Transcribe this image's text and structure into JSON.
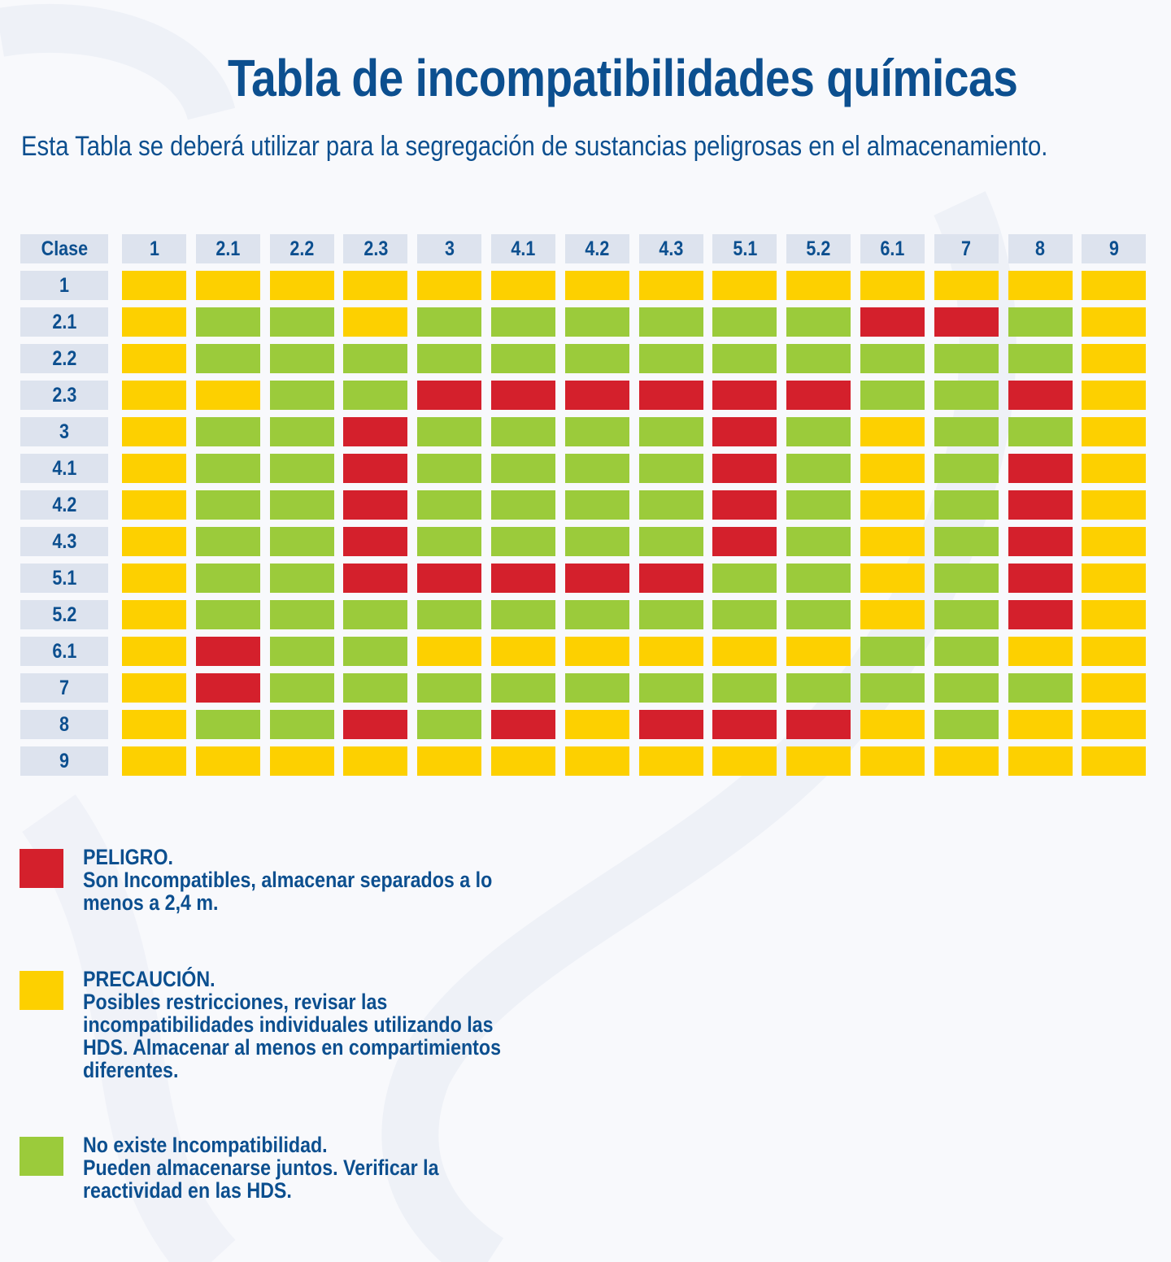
{
  "title": "Tabla de incompatibilidades químicas",
  "subtitle": "Esta Tabla se deberá utilizar para la segregación de sustancias peligrosas en el almacenamiento.",
  "colors": {
    "red": "#d4202c",
    "yellow": "#fdd000",
    "green": "#9bcb3b",
    "header_bg": "#dde3ee",
    "text": "#0c4f8f"
  },
  "table": {
    "corner": "Clase",
    "columns": [
      "1",
      "2.1",
      "2.2",
      "2.3",
      "3",
      "4.1",
      "4.2",
      "4.3",
      "5.1",
      "5.2",
      "6.1",
      "7",
      "8",
      "9"
    ],
    "rows": [
      {
        "label": "1",
        "cells": [
          "Y",
          "Y",
          "Y",
          "Y",
          "Y",
          "Y",
          "Y",
          "Y",
          "Y",
          "Y",
          "Y",
          "Y",
          "Y",
          "Y"
        ]
      },
      {
        "label": "2.1",
        "cells": [
          "Y",
          "G",
          "G",
          "Y",
          "G",
          "G",
          "G",
          "G",
          "G",
          "G",
          "R",
          "R",
          "G",
          "Y"
        ]
      },
      {
        "label": "2.2",
        "cells": [
          "Y",
          "G",
          "G",
          "G",
          "G",
          "G",
          "G",
          "G",
          "G",
          "G",
          "G",
          "G",
          "G",
          "Y"
        ]
      },
      {
        "label": "2.3",
        "cells": [
          "Y",
          "Y",
          "G",
          "G",
          "R",
          "R",
          "R",
          "R",
          "R",
          "R",
          "G",
          "G",
          "R",
          "Y"
        ]
      },
      {
        "label": "3",
        "cells": [
          "Y",
          "G",
          "G",
          "R",
          "G",
          "G",
          "G",
          "G",
          "R",
          "G",
          "Y",
          "G",
          "G",
          "Y"
        ]
      },
      {
        "label": "4.1",
        "cells": [
          "Y",
          "G",
          "G",
          "R",
          "G",
          "G",
          "G",
          "G",
          "R",
          "G",
          "Y",
          "G",
          "R",
          "Y"
        ]
      },
      {
        "label": "4.2",
        "cells": [
          "Y",
          "G",
          "G",
          "R",
          "G",
          "G",
          "G",
          "G",
          "R",
          "G",
          "Y",
          "G",
          "R",
          "Y"
        ]
      },
      {
        "label": "4.3",
        "cells": [
          "Y",
          "G",
          "G",
          "R",
          "G",
          "G",
          "G",
          "G",
          "R",
          "G",
          "Y",
          "G",
          "R",
          "Y"
        ]
      },
      {
        "label": "5.1",
        "cells": [
          "Y",
          "G",
          "G",
          "R",
          "R",
          "R",
          "R",
          "R",
          "G",
          "G",
          "Y",
          "G",
          "R",
          "Y"
        ]
      },
      {
        "label": "5.2",
        "cells": [
          "Y",
          "G",
          "G",
          "G",
          "G",
          "G",
          "G",
          "G",
          "G",
          "G",
          "Y",
          "G",
          "R",
          "Y"
        ]
      },
      {
        "label": "6.1",
        "cells": [
          "Y",
          "R",
          "G",
          "G",
          "Y",
          "Y",
          "Y",
          "Y",
          "Y",
          "Y",
          "G",
          "G",
          "Y",
          "Y"
        ]
      },
      {
        "label": "7",
        "cells": [
          "Y",
          "R",
          "G",
          "G",
          "G",
          "G",
          "G",
          "G",
          "G",
          "G",
          "G",
          "G",
          "G",
          "Y"
        ]
      },
      {
        "label": "8",
        "cells": [
          "Y",
          "G",
          "G",
          "R",
          "G",
          "R",
          "Y",
          "R",
          "R",
          "R",
          "Y",
          "G",
          "Y",
          "Y"
        ]
      },
      {
        "label": "9",
        "cells": [
          "Y",
          "Y",
          "Y",
          "Y",
          "Y",
          "Y",
          "Y",
          "Y",
          "Y",
          "Y",
          "Y",
          "Y",
          "Y",
          "Y"
        ]
      }
    ]
  },
  "legend": {
    "red": {
      "title": "PELIGRO.",
      "description": "Son Incompatibles, almacenar separados a lo menos a 2,4 m."
    },
    "yellow": {
      "title": "PRECAUCIÓN.",
      "description": "Posibles restricciones, revisar las incompatibilidades individuales utilizando las HDS. Almacenar al menos en compartimientos diferentes."
    },
    "green": {
      "title": "No existe Incompatibilidad.",
      "description": "Pueden almacenarse juntos. Verificar la reactividad en las HDS."
    }
  }
}
